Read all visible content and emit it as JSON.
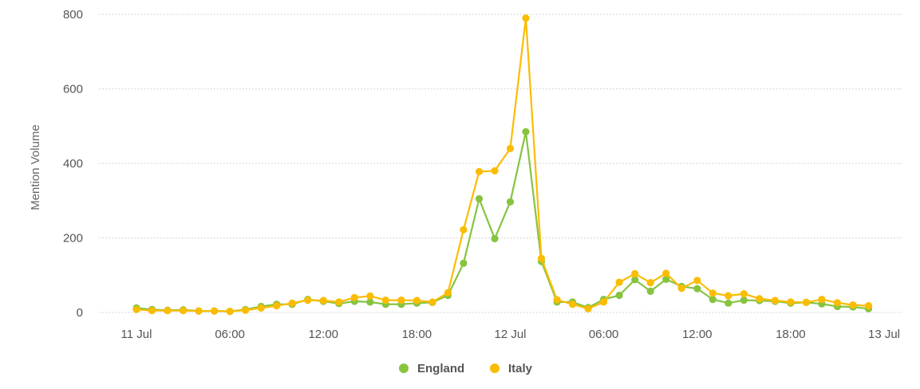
{
  "chart_data": {
    "type": "line",
    "title": "",
    "xlabel": "",
    "ylabel": "Mention Volume",
    "ylim": [
      0,
      800
    ],
    "yticks": [
      0,
      200,
      400,
      600,
      800
    ],
    "grid": true,
    "legend_position": "bottom-center",
    "x_tick_labels": [
      "11 Jul",
      "06:00",
      "12:00",
      "18:00",
      "12 Jul",
      "06:00",
      "12:00",
      "18:00",
      "13 Jul"
    ],
    "x_hours_range": [
      0,
      48
    ],
    "x_start_hour": 0,
    "x_step_hours": 1,
    "series": [
      {
        "name": "England",
        "color": "#86c440",
        "values": [
          12,
          8,
          6,
          7,
          4,
          4,
          3,
          8,
          16,
          22,
          22,
          35,
          30,
          24,
          30,
          28,
          22,
          22,
          25,
          27,
          46,
          132,
          305,
          198,
          297,
          485,
          137,
          28,
          28,
          13,
          35,
          46,
          88,
          57,
          89,
          70,
          64,
          35,
          25,
          33,
          32,
          30,
          25,
          27,
          23,
          16,
          15,
          10
        ]
      },
      {
        "name": "Italy",
        "color": "#fbbc04",
        "values": [
          8,
          5,
          5,
          5,
          4,
          4,
          3,
          6,
          12,
          18,
          25,
          33,
          32,
          28,
          40,
          44,
          33,
          33,
          32,
          28,
          53,
          222,
          378,
          380,
          440,
          790,
          145,
          34,
          22,
          10,
          28,
          81,
          104,
          80,
          105,
          65,
          86,
          52,
          45,
          50,
          37,
          32,
          28,
          27,
          35,
          26,
          20,
          18
        ]
      }
    ]
  }
}
